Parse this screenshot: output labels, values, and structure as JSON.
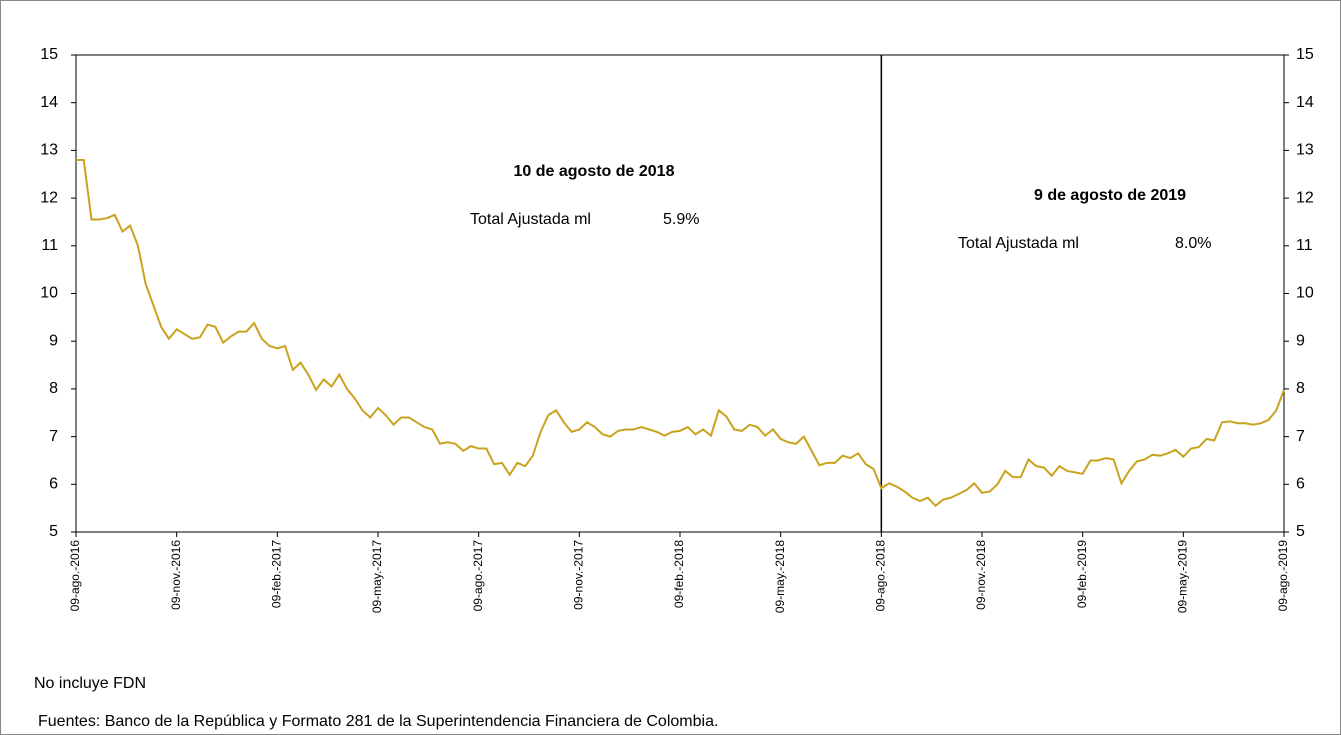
{
  "chart_data": {
    "type": "line",
    "categories": [
      "09-ago.-2016",
      null,
      null,
      null,
      null,
      null,
      null,
      null,
      null,
      null,
      null,
      null,
      null,
      "09-nov.-2016",
      null,
      null,
      null,
      null,
      null,
      null,
      null,
      null,
      null,
      null,
      null,
      null,
      "09-feb.-2017",
      null,
      null,
      null,
      null,
      null,
      null,
      null,
      null,
      null,
      null,
      null,
      null,
      "09-may.-2017",
      null,
      null,
      null,
      null,
      null,
      null,
      null,
      null,
      null,
      null,
      null,
      null,
      "09-ago.-2017",
      null,
      null,
      null,
      null,
      null,
      null,
      null,
      null,
      null,
      null,
      null,
      null,
      "09-nov.-2017",
      null,
      null,
      null,
      null,
      null,
      null,
      null,
      null,
      null,
      null,
      null,
      null,
      "09-feb.-2018",
      null,
      null,
      null,
      null,
      null,
      null,
      null,
      null,
      null,
      null,
      null,
      null,
      "09-may.-2018",
      null,
      null,
      null,
      null,
      null,
      null,
      null,
      null,
      null,
      null,
      null,
      null,
      "09-ago.-2018",
      null,
      null,
      null,
      null,
      null,
      null,
      null,
      null,
      null,
      null,
      null,
      null,
      "09-nov.-2018",
      null,
      null,
      null,
      null,
      null,
      null,
      null,
      null,
      null,
      null,
      null,
      null,
      "09-feb.-2019",
      null,
      null,
      null,
      null,
      null,
      null,
      null,
      null,
      null,
      null,
      null,
      null,
      "09-may.-2019",
      null,
      null,
      null,
      null,
      null,
      null,
      null,
      null,
      null,
      null,
      null,
      null,
      "09-ago.-2019"
    ],
    "series": [
      {
        "color": "#c9a21e",
        "values": [
          12.8,
          12.8,
          11.55,
          11.55,
          11.58,
          11.65,
          11.3,
          11.42,
          11.0,
          10.2,
          9.75,
          9.3,
          9.05,
          9.25,
          9.15,
          9.05,
          9.08,
          9.35,
          9.3,
          8.97,
          9.1,
          9.2,
          9.2,
          9.38,
          9.05,
          8.9,
          8.85,
          8.9,
          8.4,
          8.55,
          8.3,
          7.98,
          8.2,
          8.05,
          8.3,
          8.0,
          7.8,
          7.55,
          7.4,
          7.6,
          7.45,
          7.25,
          7.4,
          7.4,
          7.3,
          7.2,
          7.15,
          6.85,
          6.88,
          6.85,
          6.7,
          6.8,
          6.75,
          6.75,
          6.42,
          6.45,
          6.2,
          6.45,
          6.38,
          6.6,
          7.1,
          7.45,
          7.55,
          7.3,
          7.1,
          7.15,
          7.3,
          7.2,
          7.05,
          7.0,
          7.12,
          7.15,
          7.15,
          7.2,
          7.15,
          7.1,
          7.02,
          7.1,
          7.12,
          7.2,
          7.05,
          7.15,
          7.02,
          7.55,
          7.42,
          7.15,
          7.12,
          7.25,
          7.2,
          7.02,
          7.15,
          6.95,
          6.88,
          6.85,
          7.0,
          6.7,
          6.4,
          6.45,
          6.45,
          6.6,
          6.55,
          6.65,
          6.42,
          6.32,
          5.92,
          6.02,
          5.95,
          5.85,
          5.72,
          5.65,
          5.72,
          5.55,
          5.68,
          5.72,
          5.8,
          5.88,
          6.02,
          5.82,
          5.85,
          6.0,
          6.28,
          6.15,
          6.15,
          6.52,
          6.38,
          6.35,
          6.18,
          6.38,
          6.28,
          6.25,
          6.22,
          6.5,
          6.5,
          6.55,
          6.52,
          6.02,
          6.28,
          6.48,
          6.52,
          6.62,
          6.6,
          6.65,
          6.72,
          6.58,
          6.75,
          6.78,
          6.95,
          6.92,
          7.3,
          7.32,
          7.28,
          7.28,
          7.25,
          7.28,
          7.35,
          7.55,
          7.98
        ]
      }
    ],
    "ylim": [
      5,
      15
    ],
    "yticks": [
      5,
      6,
      7,
      8,
      9,
      10,
      11,
      12,
      13,
      14,
      15
    ],
    "y2lim": [
      5,
      15
    ],
    "y2ticks": [
      5,
      6,
      7,
      8,
      9,
      10,
      11,
      12,
      13,
      14,
      15
    ],
    "vline": "09-ago.-2018",
    "annotations": [
      {
        "title": "10 de agosto de 2018",
        "label": "Total Ajustada ml",
        "value_label": "5.9%"
      },
      {
        "title": "9 de agosto de 2019",
        "label": "Total Ajustada ml",
        "value_label": "8.0%"
      }
    ],
    "notes": [
      "No incluye FDN",
      "Fuentes: Banco de la República y Formato 281 de la Superintendencia Financiera de Colombia."
    ]
  }
}
